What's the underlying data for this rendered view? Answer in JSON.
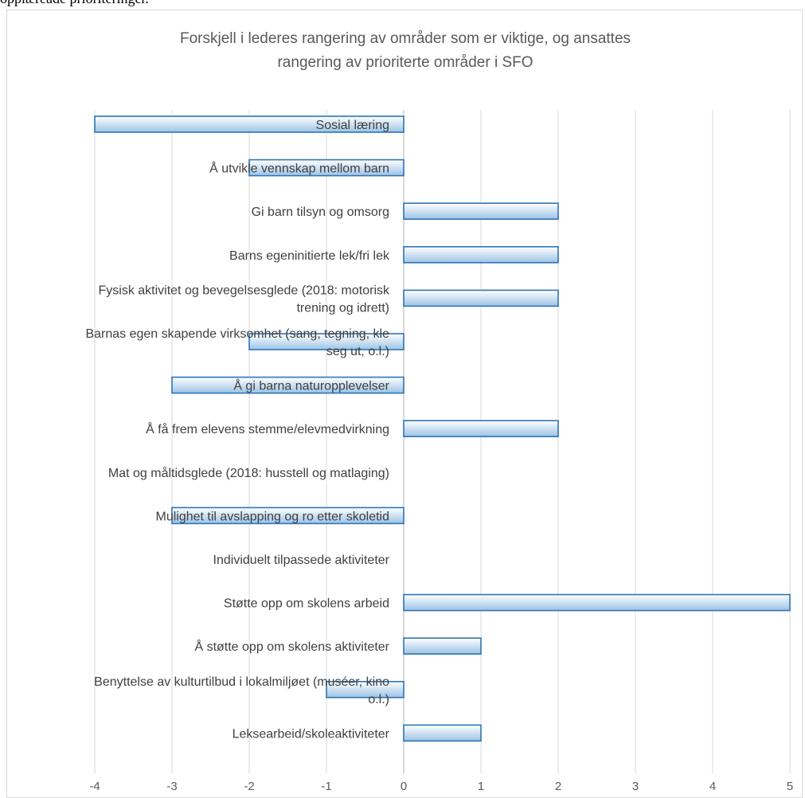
{
  "page": {
    "top_fragment": "opplæreade prioriteringer."
  },
  "chart_data": {
    "type": "bar",
    "orientation": "horizontal",
    "title_lines": [
      "Forskjell i lederes rangering av områder som er viktige, og ansattes",
      "rangering av prioriterte områder i SFO"
    ],
    "categories": [
      "Sosial læring",
      "Å utvikle vennskap mellom barn",
      "Gi barn tilsyn og omsorg",
      "Barns egeninitierte lek/fri lek",
      "Fysisk aktivitet og bevegelsesglede (2018: motorisk trening og idrett)",
      "Barnas egen skapende virksomhet (sang, tegning, kle seg ut, o.l.)",
      "Å gi barna naturopplevelser",
      "Å få frem elevens stemme/elevmedvirkning",
      "Mat og måltidsglede (2018: husstell og matlaging)",
      "Mulighet til avslapping og ro etter skoletid",
      "Individuelt tilpassede aktiviteter",
      "Støtte opp om skolens arbeid",
      "Å støtte opp om skolens aktiviteter",
      "Benyttelse av kulturtilbud i lokalmiljøet (muséer, kino o.l.)",
      "Leksearbeid/skoleaktiviteter"
    ],
    "category_label_lines": [
      [
        "Sosial læring"
      ],
      [
        "Å utvikle vennskap mellom barn"
      ],
      [
        "Gi barn tilsyn og omsorg"
      ],
      [
        "Barns egeninitierte lek/fri lek"
      ],
      [
        "Fysisk aktivitet og bevegelsesglede (2018: motorisk",
        "trening og idrett)"
      ],
      [
        "Barnas egen skapende virksomhet (sang, tegning, kle",
        "seg ut, o.l.)"
      ],
      [
        "Å gi barna naturopplevelser"
      ],
      [
        "Å få frem elevens stemme/elevmedvirkning"
      ],
      [
        "Mat og måltidsglede (2018: husstell og matlaging)"
      ],
      [
        "Mulighet til avslapping og ro etter skoletid"
      ],
      [
        "Individuelt tilpassede aktiviteter"
      ],
      [
        "Støtte opp om skolens arbeid"
      ],
      [
        "Å støtte opp om skolens aktiviteter"
      ],
      [
        "Benyttelse av kulturtilbud i lokalmiljøet (muséer, kino",
        "o.l.)"
      ],
      [
        "Leksearbeid/skoleaktiviteter"
      ]
    ],
    "values": [
      -4,
      -2,
      2,
      2,
      2,
      -2,
      -3,
      2,
      0,
      -3,
      0,
      5,
      1,
      -1,
      1
    ],
    "xlim": [
      -4,
      5
    ],
    "xticks": [
      -4,
      -3,
      -2,
      -1,
      0,
      1,
      2,
      3,
      4,
      5
    ],
    "grid": "vertical",
    "legend": "none",
    "colors": {
      "bar_fill_top": "#ffffff",
      "bar_fill_bottom": "#9dc3e6",
      "bar_stroke": "#2e75b6",
      "grid": "#d9d9d9",
      "axis": "#bfbfbf"
    }
  }
}
